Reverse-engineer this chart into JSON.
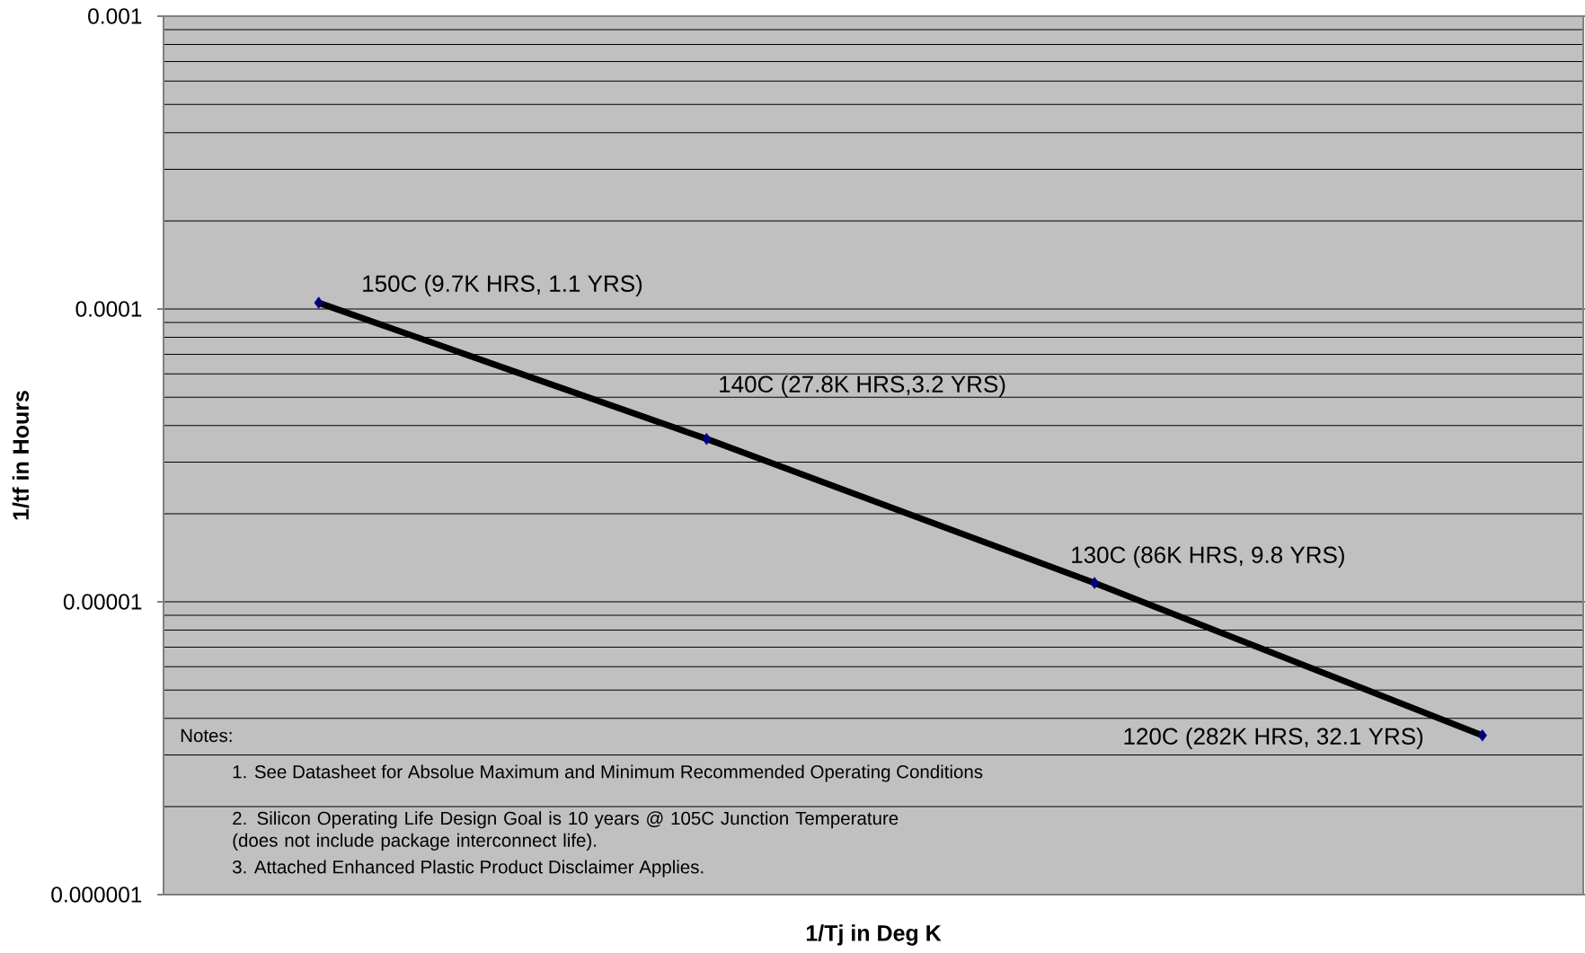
{
  "chart_data": {
    "type": "line",
    "xlabel": "1/Tj in Deg K",
    "ylabel": "1/tf in Hours",
    "categories": [
      null,
      null,
      null,
      null
    ],
    "values": [
      0.000105,
      3.6e-05,
      1.16e-05,
      3.5e-06
    ],
    "color": "#000000",
    "colors": [
      "#000080",
      "#000080",
      "#000080",
      "#000080"
    ],
    "ylim": [
      1e-06,
      0.001
    ],
    "yticks": [
      {
        "value": 1e-06,
        "label": "0.000001"
      },
      {
        "value": 1e-05,
        "label": "0.00001"
      },
      {
        "value": 0.0001,
        "label": "0.0001"
      },
      {
        "value": 0.001,
        "label": "0.001"
      }
    ],
    "log": true,
    "grid": "y",
    "marker": "diamond",
    "line_style": "solid",
    "tick_labels": "y",
    "annotations": [
      "150C (9.7K HRS, 1.1 YRS)",
      "140C (27.8K HRS,3.2 YRS)",
      "130C (86K HRS, 9.8 YRS)",
      "120C (282K HRS, 32.1 YRS)",
      "Notes:",
      "1. See Datasheet for Absolue Maximum and Minimum Recommended Operating Conditions",
      "2. Silicon Operating Life Design Goal is 10 years @ 105C Junction Temperature (does not include package interconnect life).",
      "3. Attached Enhanced Plastic Product Disclaimer Applies."
    ]
  }
}
